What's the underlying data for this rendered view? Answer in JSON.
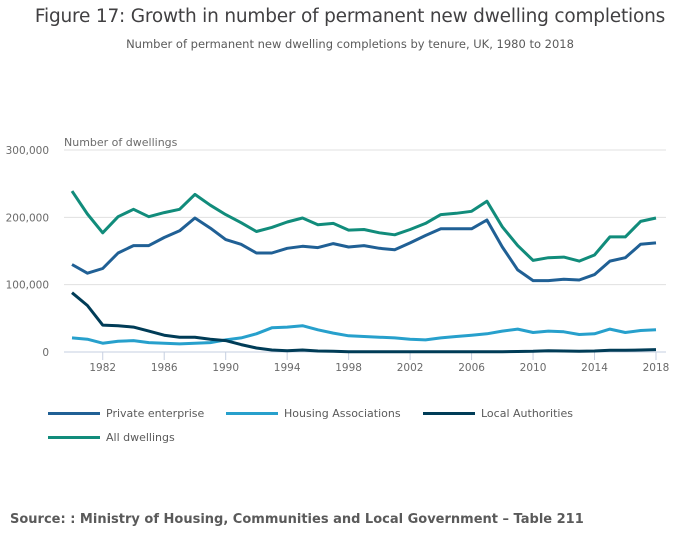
{
  "title": "Figure 17: Growth in number of permanent new dwelling completions",
  "subtitle": "Number of permanent new dwelling completions by tenure, UK, 1980 to 2018",
  "source": "Source: : Ministry of Housing, Communities and Local Government – Table 211",
  "chart_data": {
    "type": "line",
    "title": "Figure 17: Growth in number of permanent new dwelling completions",
    "subtitle": "Number of permanent new dwelling completions by tenure, UK, 1980 to 2018",
    "xlabel": "",
    "ylabel": "Number of dwellings",
    "xlim": [
      1980,
      2018
    ],
    "ylim": [
      0,
      300000
    ],
    "x_ticks": [
      1982,
      1986,
      1990,
      1994,
      1998,
      2002,
      2006,
      2010,
      2014,
      2018
    ],
    "y_ticks": [
      0,
      100000,
      200000,
      300000
    ],
    "y_tick_labels": [
      "0",
      "100,000",
      "200,000",
      "300,000"
    ],
    "grid": true,
    "legend_position": "bottom",
    "x": [
      1980,
      1981,
      1982,
      1983,
      1984,
      1985,
      1986,
      1987,
      1988,
      1989,
      1990,
      1991,
      1992,
      1993,
      1994,
      1995,
      1996,
      1997,
      1998,
      1999,
      2000,
      2001,
      2002,
      2003,
      2004,
      2005,
      2006,
      2007,
      2008,
      2009,
      2010,
      2011,
      2012,
      2013,
      2014,
      2015,
      2016,
      2017,
      2018
    ],
    "series": [
      {
        "name": "Private enterprise",
        "color": "#206095",
        "values": [
          130000,
          117000,
          124000,
          147000,
          158000,
          158000,
          170000,
          180000,
          199000,
          184000,
          167000,
          160000,
          147000,
          147000,
          154000,
          157000,
          155000,
          161000,
          156000,
          158000,
          154000,
          152000,
          162000,
          173000,
          183000,
          183000,
          183000,
          196000,
          156000,
          122000,
          106000,
          106000,
          108000,
          107000,
          115000,
          135000,
          140000,
          160000,
          162000
        ]
      },
      {
        "name": "Housing Associations",
        "color": "#27a0cc",
        "values": [
          21000,
          19000,
          13000,
          16000,
          17000,
          14000,
          13000,
          12000,
          13000,
          14000,
          18000,
          21000,
          27000,
          36000,
          37000,
          39000,
          33000,
          28000,
          24000,
          23000,
          22000,
          21000,
          19000,
          18000,
          21000,
          23000,
          25000,
          27000,
          31000,
          34000,
          29000,
          31000,
          30000,
          26000,
          27000,
          34000,
          29000,
          32000,
          33000
        ]
      },
      {
        "name": "Local Authorities",
        "color": "#003c57",
        "values": [
          88000,
          69000,
          40000,
          39000,
          37000,
          31000,
          25000,
          22000,
          22000,
          19000,
          17000,
          11000,
          6000,
          3000,
          2000,
          3000,
          1500,
          1000,
          500,
          300,
          300,
          300,
          300,
          300,
          300,
          300,
          300,
          300,
          500,
          800,
          1000,
          2000,
          1500,
          1000,
          1500,
          2500,
          2500,
          3000,
          3500
        ]
      },
      {
        "name": "All dwellings",
        "color": "#118c7b",
        "values": [
          239000,
          205000,
          177000,
          201000,
          212000,
          201000,
          207000,
          212000,
          234000,
          218000,
          204000,
          192000,
          179000,
          185000,
          193000,
          199000,
          189000,
          191000,
          181000,
          182000,
          177000,
          174000,
          182000,
          191000,
          204000,
          206000,
          209000,
          224000,
          186000,
          158000,
          136000,
          140000,
          141000,
          135000,
          144000,
          171000,
          171000,
          194000,
          199000
        ]
      }
    ]
  }
}
